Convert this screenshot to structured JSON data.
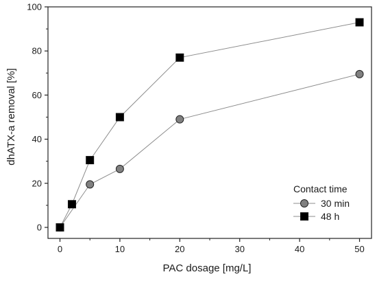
{
  "chart_data": {
    "type": "line",
    "xlabel": "PAC dosage [mg/L]",
    "ylabel": "dhATX-a removal [%]",
    "xlim": [
      -2,
      52
    ],
    "ylim": [
      -5,
      100
    ],
    "xticks": [
      0,
      10,
      20,
      30,
      40,
      50
    ],
    "yticks": [
      0,
      20,
      40,
      60,
      80,
      100
    ],
    "grid": false,
    "legend": {
      "title": "Contact time",
      "placement": "bottom-right"
    },
    "series": [
      {
        "name": "30 min",
        "marker": "circle",
        "color": "#808080",
        "x": [
          0,
          5,
          10,
          20,
          50
        ],
        "y": [
          0,
          19.5,
          26.5,
          49,
          69.5
        ]
      },
      {
        "name": "48 h",
        "marker": "square",
        "color": "#000000",
        "x": [
          0,
          2,
          5,
          10,
          20,
          50
        ],
        "y": [
          0,
          10.5,
          30.5,
          50,
          77,
          93
        ]
      }
    ]
  }
}
